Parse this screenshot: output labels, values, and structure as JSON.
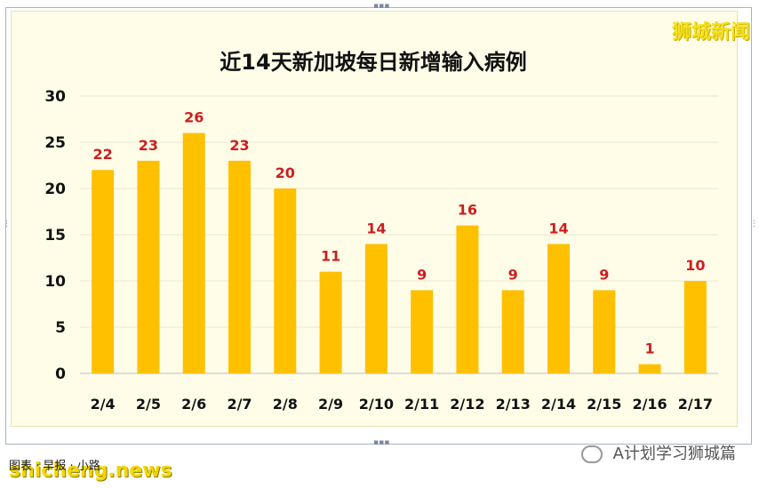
{
  "brand_top_right": "狮城新闻",
  "footer": {
    "caption": "图表 · 早报 · 小路",
    "site": "shicheng.news",
    "wechat_account": "A计划学习狮城篇"
  },
  "chart_data": {
    "type": "bar",
    "title": "近14天新加坡每日新增输入病例",
    "categories": [
      "2/4",
      "2/5",
      "2/6",
      "2/7",
      "2/8",
      "2/9",
      "2/10",
      "2/11",
      "2/12",
      "2/13",
      "2/14",
      "2/15",
      "2/16",
      "2/17"
    ],
    "values": [
      22,
      23,
      26,
      23,
      20,
      11,
      14,
      9,
      16,
      9,
      14,
      9,
      1,
      10
    ],
    "ylim": [
      0,
      30
    ],
    "yticks": [
      0,
      5,
      10,
      15,
      20,
      25,
      30
    ],
    "bar_color": "#ffc000",
    "label_color": "#cc1f1f",
    "grid": true,
    "xlabel": "",
    "ylabel": ""
  }
}
